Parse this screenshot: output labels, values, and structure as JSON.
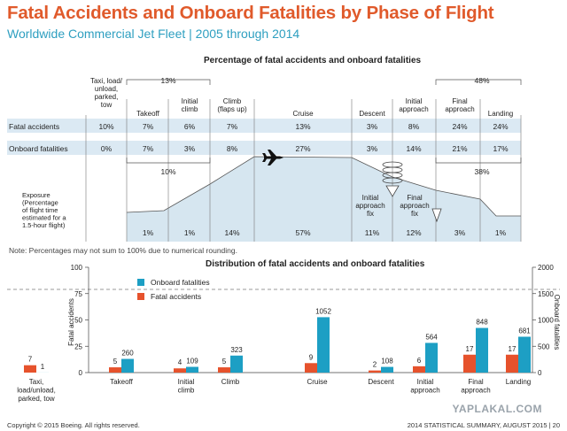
{
  "header": {
    "title": "Fatal Accidents and Onboard Fatalities by Phase of Flight",
    "subtitle": "Worldwide Commercial Jet Fleet | 2005 through 2014"
  },
  "top_section": {
    "title": "Percentage of fatal accidents and onboard fatalities",
    "phases": [
      {
        "label": "Taxi, load/\nunload,\nparked,\ntow",
        "fatal": "10%",
        "onboard": "0%",
        "exposure": ""
      },
      {
        "label": "Takeoff",
        "fatal": "7%",
        "onboard": "7%",
        "exposure": "1%"
      },
      {
        "label": "Initial\nclimb",
        "fatal": "6%",
        "onboard": "3%",
        "exposure": "1%"
      },
      {
        "label": "Climb\n(flaps up)",
        "fatal": "7%",
        "onboard": "8%",
        "exposure": "14%"
      },
      {
        "label": "Cruise",
        "fatal": "13%",
        "onboard": "27%",
        "exposure": "57%"
      },
      {
        "label": "Descent",
        "fatal": "3%",
        "onboard": "3%",
        "exposure": "11%"
      },
      {
        "label": "Initial\napproach",
        "fatal": "8%",
        "onboard": "14%",
        "exposure": "12%"
      },
      {
        "label": "Final\napproach",
        "fatal": "24%",
        "onboard": "21%",
        "exposure": "3%"
      },
      {
        "label": "Landing",
        "fatal": "24%",
        "onboard": "17%",
        "exposure": "1%"
      }
    ],
    "row_labels": {
      "fatal": "Fatal accidents",
      "onboard": "Onboard fatalities"
    },
    "group_top_left": "13%",
    "group_bottom_left": "10%",
    "group_top_right": "48%",
    "group_bottom_right": "38%",
    "exposure_label": "Exposure\n(Percentage\nof flight time\nestimated for a\n1.5-hour flight)",
    "fix_labels": [
      "Initial\napproach\nfix",
      "Final\napproach\nfix"
    ],
    "note": "Note: Percentages may not sum to 100% due to numerical rounding."
  },
  "chart_data": {
    "type": "bar",
    "title": "Distribution of fatal accidents and onboard fatalities",
    "categories": [
      "Taxi,\nload/unload,\nparked, tow",
      "Takeoff",
      "Initial\nclimb",
      "Climb",
      "Cruise",
      "Descent",
      "Initial\napproach",
      "Final\napproach",
      "Landing"
    ],
    "series": [
      {
        "name": "Fatal accidents",
        "axis": "left",
        "color": "#e6522c",
        "values": [
          7,
          5,
          4,
          5,
          9,
          2,
          6,
          17,
          17
        ]
      },
      {
        "name": "Onboard fatalities",
        "axis": "right",
        "color": "#1d9fc4",
        "values": [
          1,
          260,
          109,
          323,
          1052,
          108,
          564,
          848,
          681
        ]
      }
    ],
    "ylabel": "Fatal accidents",
    "y2label": "Onboard fatalities",
    "ylim": [
      0,
      100
    ],
    "y2lim": [
      0,
      2000
    ],
    "yticks": [
      0,
      25,
      50,
      75,
      100
    ],
    "y2ticks": [
      0,
      500,
      1000,
      1500,
      2000
    ],
    "legend_position": "top-left"
  },
  "footer": {
    "copyright": "Copyright © 2015 Boeing. All rights reserved.",
    "summary": "2014 STATISTICAL SUMMARY, AUGUST 2015 | 20",
    "watermark": "YAPLAKAL.COM"
  },
  "colors": {
    "title": "#e05a2b",
    "subtitle": "#2e9fc0",
    "fatal": "#e6522c",
    "onboard": "#1d9fc4",
    "row_band": "#dbe9f3",
    "exposure_fill": "#d6e6f0"
  }
}
